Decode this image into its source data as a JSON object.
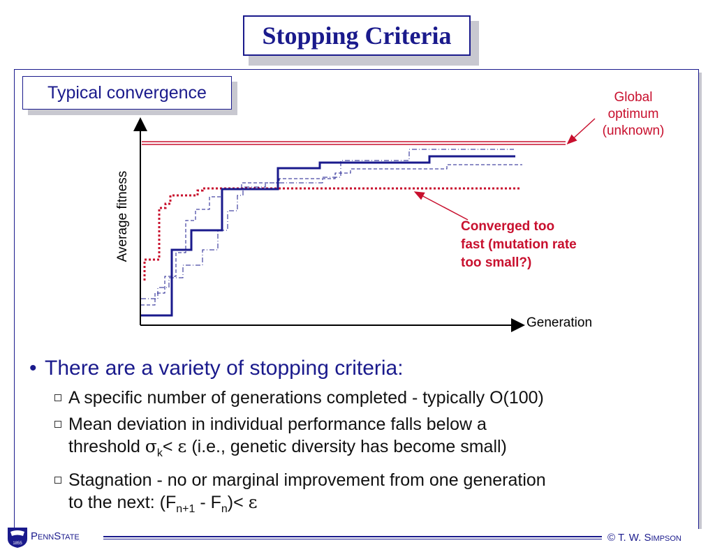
{
  "title": "Stopping Criteria",
  "subtitle": "Typical convergence",
  "annotations": {
    "global_optimum": [
      "Global",
      "optimum",
      "(unknown)"
    ],
    "converged": [
      "Converged too",
      "fast (mutation rate",
      "too small?)"
    ]
  },
  "axes": {
    "ylabel": "Average fitness",
    "xlabel": "Generation"
  },
  "bullets": {
    "main": "There are a variety of stopping criteria:",
    "items": [
      {
        "text": "A specific number of generations completed - typically O(100)"
      },
      {
        "line1": "Mean deviation in individual performance falls below a",
        "line2_a": "threshold ",
        "sigma": "σ",
        "sub_k": "k",
        "line2_b": "< ",
        "eps": "ε",
        "line2_c": " (i.e., genetic diversity has become small)"
      },
      {
        "line1": "Stagnation - no or marginal improvement from one generation",
        "line2_a": "to the next: (F",
        "sub1": "n+1",
        "line2_b": " - F",
        "sub2": "n",
        "line2_c": ")< ",
        "eps": "ε"
      }
    ]
  },
  "footer": {
    "logo_year": "1855",
    "org_a": "P",
    "org_b": "ENN",
    "org_c": "S",
    "org_d": "TATE",
    "copy_a": "© T. W. S",
    "copy_b": "IMPSON"
  },
  "colors": {
    "navy": "#1a1a8c",
    "red": "#c8102e"
  }
}
